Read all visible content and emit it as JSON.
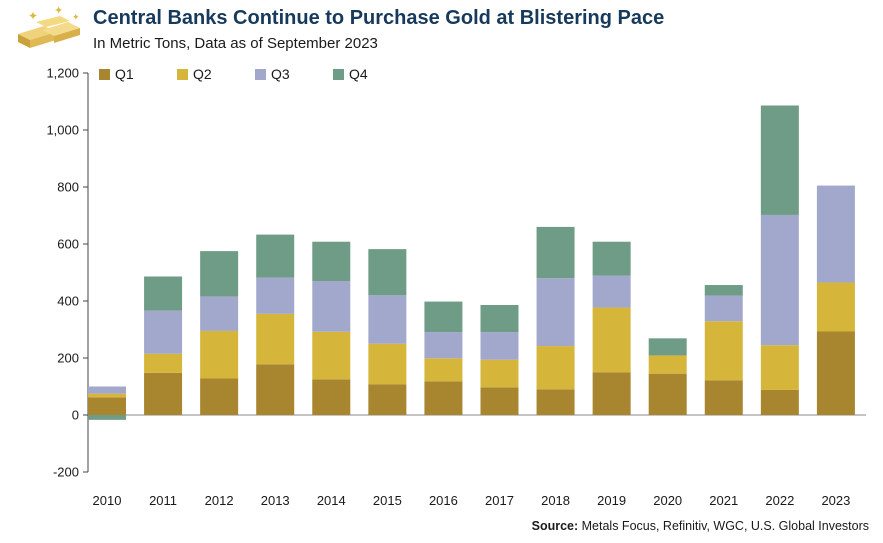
{
  "header": {
    "title": "Central Banks Continue to Purchase Gold at Blistering Pace",
    "subtitle": "In Metric Tons, Data as of September 2023"
  },
  "source": {
    "label": "Source:",
    "text": " Metals Focus, Refinitiv, WGC, U.S. Global Investors"
  },
  "colors": {
    "Q1": "#a8852f",
    "Q2": "#d6b63a",
    "Q3": "#a2a8cc",
    "Q4": "#6f9c86",
    "title": "#173a5c"
  },
  "chart_data": {
    "type": "bar",
    "stacked": true,
    "categories": [
      "2010",
      "2011",
      "2012",
      "2013",
      "2014",
      "2015",
      "2016",
      "2017",
      "2018",
      "2019",
      "2020",
      "2021",
      "2022",
      "2023"
    ],
    "series": [
      {
        "name": "Q1",
        "values": [
          62,
          148,
          128,
          178,
          125,
          108,
          118,
          97,
          90,
          150,
          145,
          122,
          88,
          293
        ]
      },
      {
        "name": "Q2",
        "values": [
          13,
          67,
          167,
          177,
          167,
          142,
          81,
          97,
          152,
          227,
          64,
          207,
          157,
          172
        ]
      },
      {
        "name": "Q3",
        "values": [
          25,
          151,
          121,
          127,
          178,
          170,
          92,
          97,
          238,
          112,
          0,
          90,
          457,
          340
        ]
      },
      {
        "name": "Q4",
        "values": [
          -17,
          120,
          159,
          151,
          138,
          162,
          107,
          95,
          180,
          119,
          60,
          37,
          384,
          0
        ]
      }
    ],
    "xlabel": "",
    "ylabel": "",
    "ylim": [
      -200,
      1200
    ],
    "yticks": [
      -200,
      0,
      200,
      400,
      600,
      800,
      1000,
      1200
    ],
    "grid": false,
    "legend": "top-left"
  }
}
